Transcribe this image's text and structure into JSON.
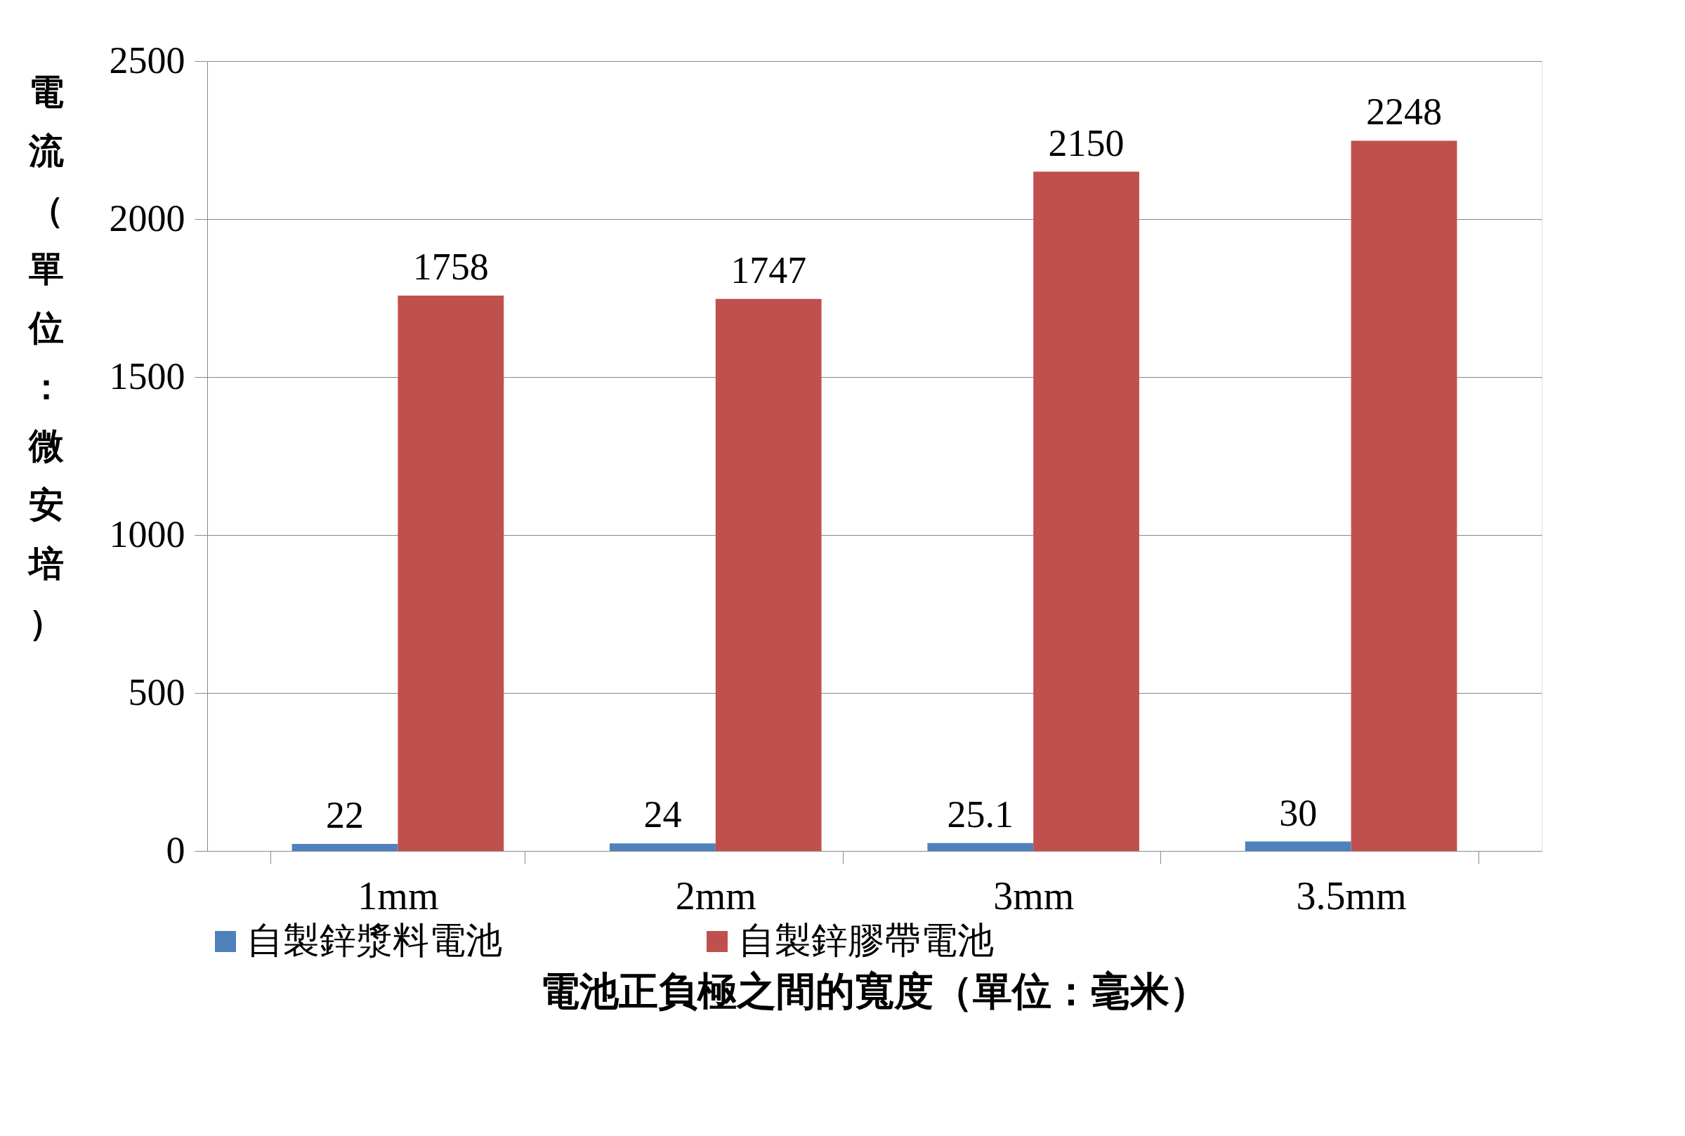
{
  "chart_data": {
    "type": "bar",
    "xlabel": "電池正負極之間的寬度（單位：毫米）",
    "ylabel": "電流（單位：微安培）",
    "categories": [
      "1mm",
      "2mm",
      "3mm",
      "3.5mm"
    ],
    "series": [
      {
        "name": "自製鋅漿料電池",
        "color": "#4f81bd",
        "values": [
          22,
          24,
          25.1,
          30
        ]
      },
      {
        "name": "自製鋅膠帶電池",
        "color": "#c0504d",
        "values": [
          1758,
          1747,
          2150,
          2248
        ]
      }
    ],
    "ylim": [
      0,
      2500
    ],
    "yticks": [
      0,
      500,
      1000,
      1500,
      2000,
      2500
    ],
    "grid": "y",
    "legend": "bottom",
    "data_labels": true
  }
}
